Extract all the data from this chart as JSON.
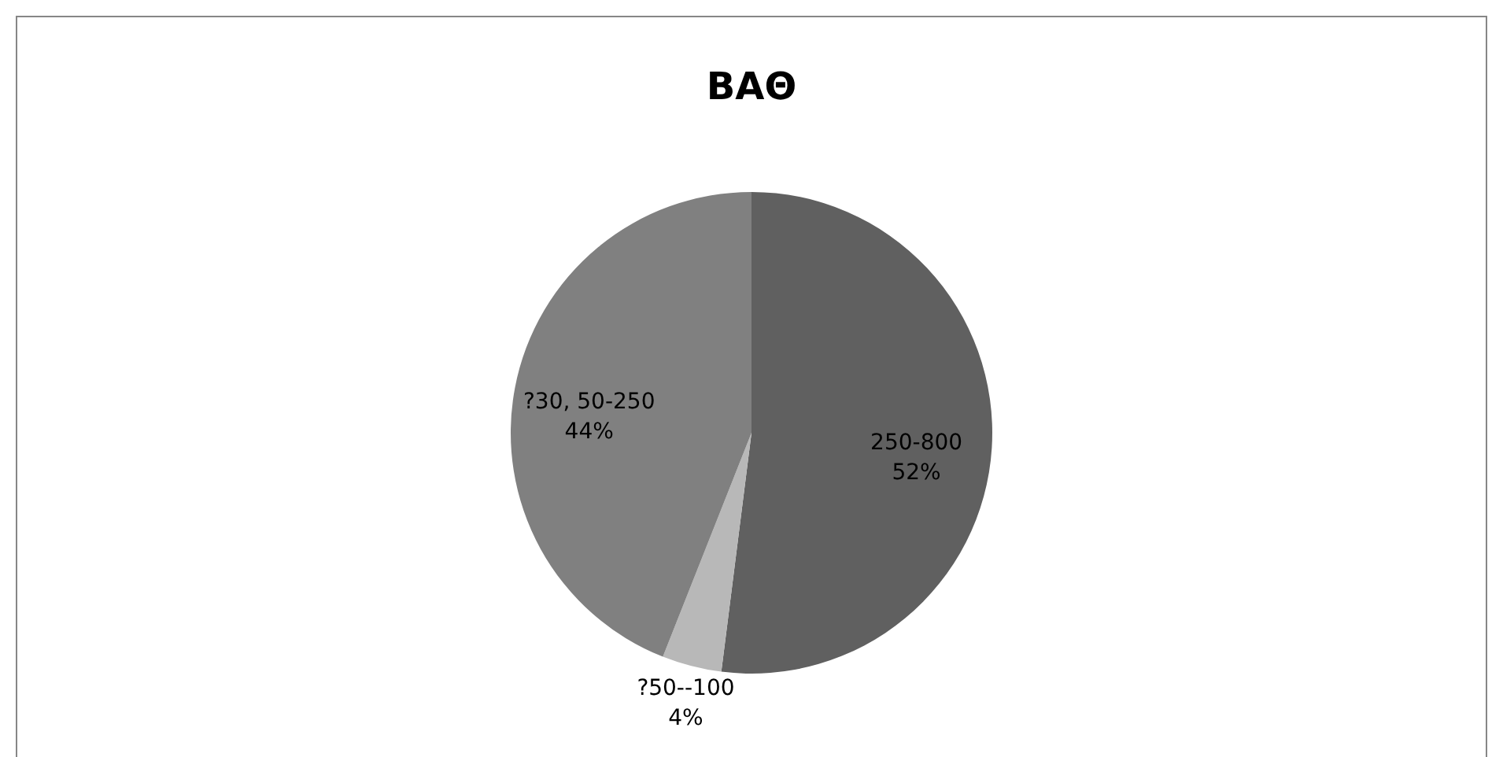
{
  "chart_data": {
    "type": "pie",
    "title": "ΒΑΘ",
    "categories": [
      "250-800",
      "?50--100",
      "?30, 50-250"
    ],
    "values": [
      52,
      4,
      44
    ],
    "colors": [
      "#606060",
      "#b8b8b8",
      "#808080"
    ],
    "value_labels": [
      "52%",
      "4%",
      "44%"
    ]
  }
}
